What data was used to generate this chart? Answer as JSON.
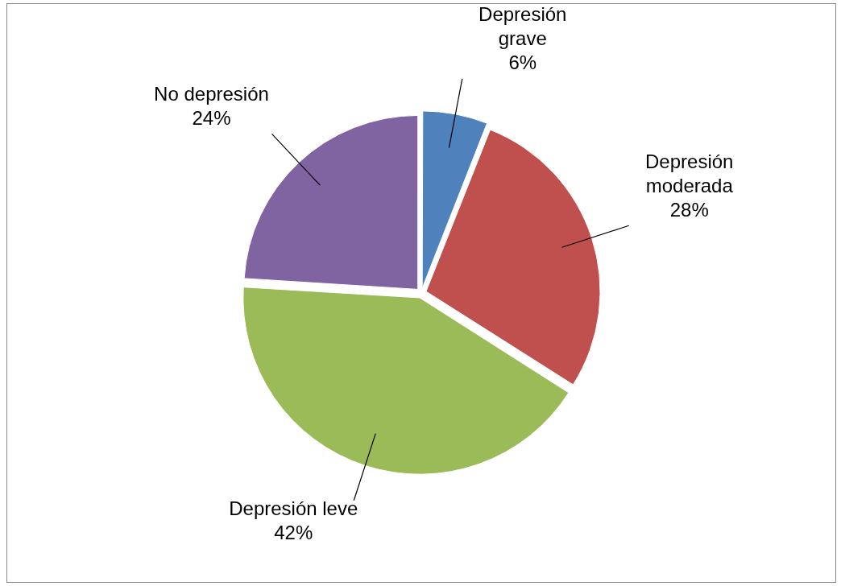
{
  "chart_data": {
    "type": "pie",
    "categories": [
      "Depresión grave",
      "Depresión moderada",
      "Depresión leve",
      "No depresión"
    ],
    "values": [
      6,
      28,
      42,
      24
    ],
    "colors": [
      "#4f81bd",
      "#c0504d",
      "#9bbb59",
      "#8064a2"
    ],
    "value_labels": [
      "6%",
      "28%",
      "42%",
      "24%"
    ]
  }
}
